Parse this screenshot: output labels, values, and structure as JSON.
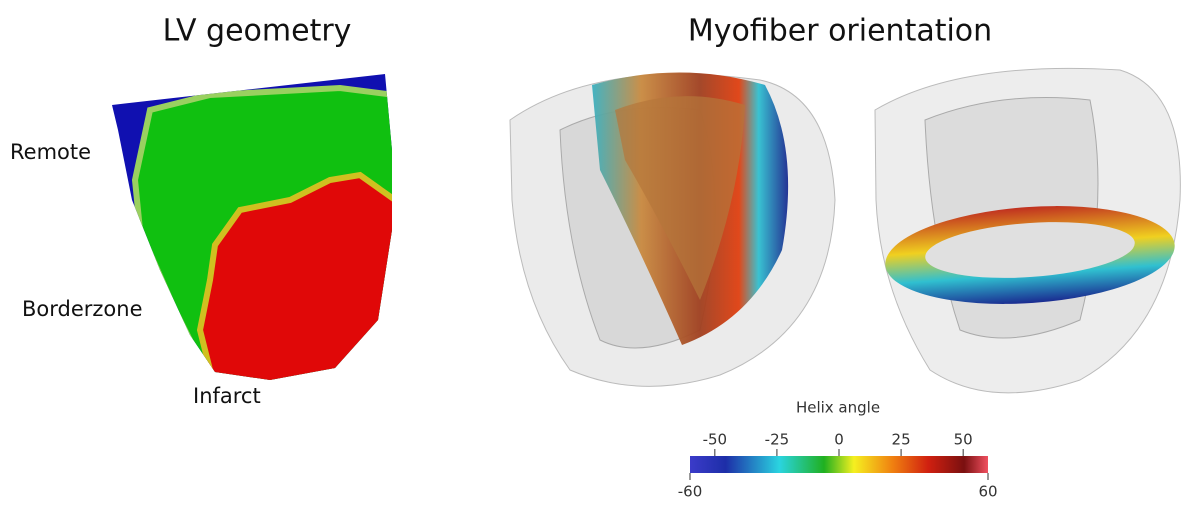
{
  "left_panel": {
    "title": "LV geometry",
    "labels": [
      "Remote",
      "Borderzone",
      "Infarct"
    ]
  },
  "right_panel": {
    "title": "Myofiber orientation",
    "colorbar": {
      "title": "Helix angle",
      "range": [
        -60,
        60
      ],
      "ticks": [
        -50,
        -25,
        0,
        25,
        50
      ]
    }
  }
}
